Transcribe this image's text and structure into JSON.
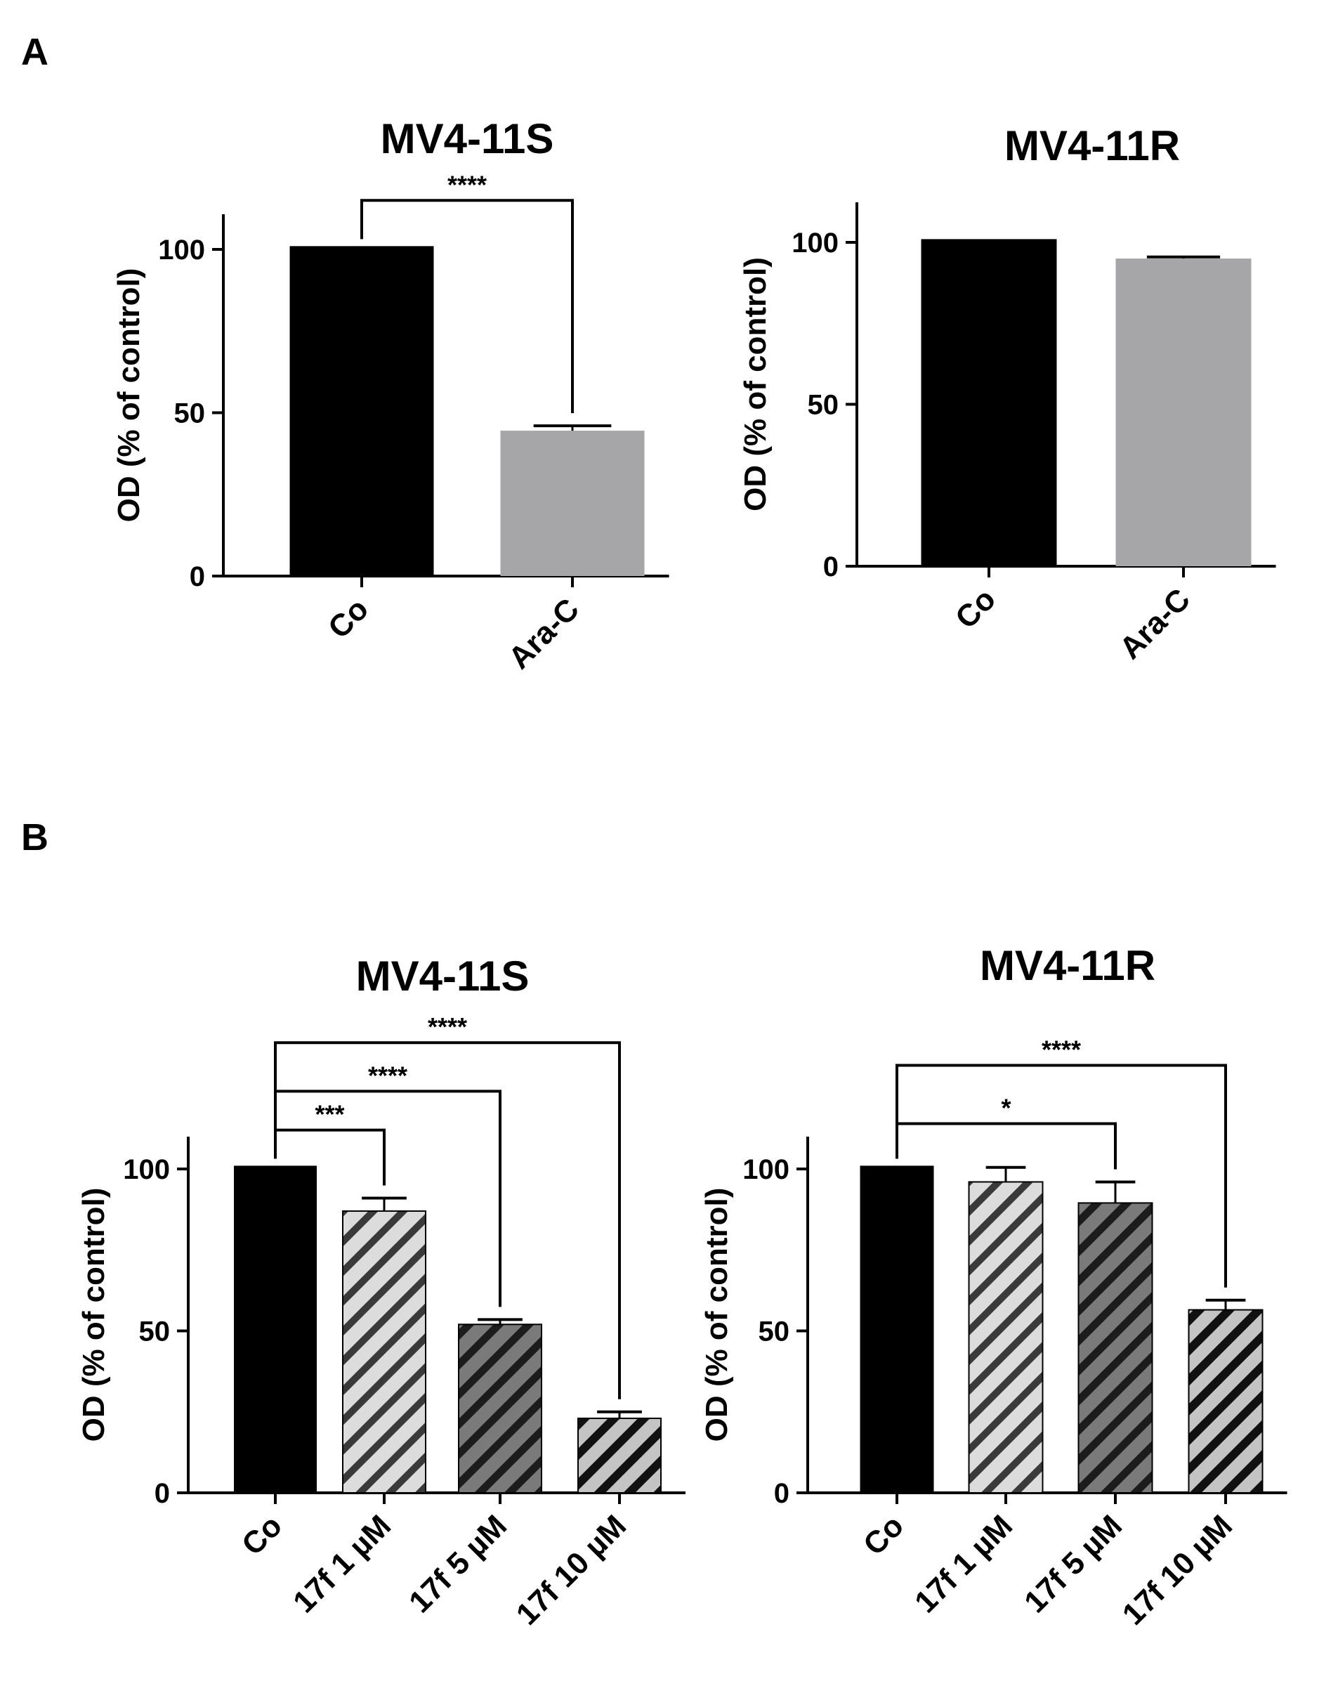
{
  "figure": {
    "panel_labels": [
      "A",
      "B"
    ]
  },
  "chart_data": [
    {
      "panel": "A",
      "type": "bar",
      "title": "MV4-11S",
      "ylabel": "OD (% of control)",
      "xlabel": "",
      "ylim": [
        0,
        110
      ],
      "yticks": [
        0,
        50,
        100
      ],
      "categories": [
        "Co",
        "Ara-C"
      ],
      "values": [
        101,
        44.5
      ],
      "errors": [
        0,
        1.5
      ],
      "colors": [
        "#000000",
        "#a6a6a9"
      ],
      "patterns": [
        "solid",
        "solid"
      ],
      "significance": [
        {
          "from": 0,
          "to": 1,
          "label": "****",
          "level": 115
        }
      ]
    },
    {
      "panel": "A",
      "type": "bar",
      "title": "MV4-11R",
      "ylabel": "OD (% of control)",
      "xlabel": "",
      "ylim": [
        0,
        110
      ],
      "yticks": [
        0,
        50,
        100
      ],
      "categories": [
        "Co",
        "Ara-C"
      ],
      "values": [
        101,
        95
      ],
      "errors": [
        0,
        0.5
      ],
      "colors": [
        "#000000",
        "#a6a6a9"
      ],
      "patterns": [
        "solid",
        "solid"
      ],
      "significance": []
    },
    {
      "panel": "B",
      "type": "bar",
      "title": "MV4-11S",
      "ylabel": "OD (% of control)",
      "xlabel": "",
      "ylim": [
        0,
        110
      ],
      "yticks": [
        0,
        50,
        100
      ],
      "categories": [
        "Co",
        "17f 1 µM",
        "17f 5 µM",
        "17f 10 µM"
      ],
      "values": [
        101,
        87,
        52,
        23
      ],
      "errors": [
        0,
        4,
        1.5,
        2
      ],
      "colors": [
        "#000000",
        "#c8c8c8",
        "#585858",
        "#b4b4b4"
      ],
      "patterns": [
        "solid",
        "hatch-light",
        "hatch-dark",
        "hatch-medium"
      ],
      "significance": [
        {
          "from": 0,
          "to": 1,
          "label": "***",
          "level": 112
        },
        {
          "from": 0,
          "to": 2,
          "label": "****",
          "level": 124
        },
        {
          "from": 0,
          "to": 3,
          "label": "****",
          "level": 139
        }
      ]
    },
    {
      "panel": "B",
      "type": "bar",
      "title": "MV4-11R",
      "ylabel": "OD (% of control)",
      "xlabel": "",
      "ylim": [
        0,
        110
      ],
      "yticks": [
        0,
        50,
        100
      ],
      "categories": [
        "Co",
        "17f 1 µM",
        "17f 5 µM",
        "17f 10 µM"
      ],
      "values": [
        101,
        96,
        89.5,
        56.5
      ],
      "errors": [
        0,
        4.5,
        6.5,
        3
      ],
      "colors": [
        "#000000",
        "#c8c8c8",
        "#585858",
        "#b4b4b4"
      ],
      "patterns": [
        "solid",
        "hatch-light",
        "hatch-dark",
        "hatch-medium"
      ],
      "significance": [
        {
          "from": 0,
          "to": 2,
          "label": "*",
          "level": 114
        },
        {
          "from": 0,
          "to": 3,
          "label": "****",
          "level": 132
        }
      ]
    }
  ]
}
